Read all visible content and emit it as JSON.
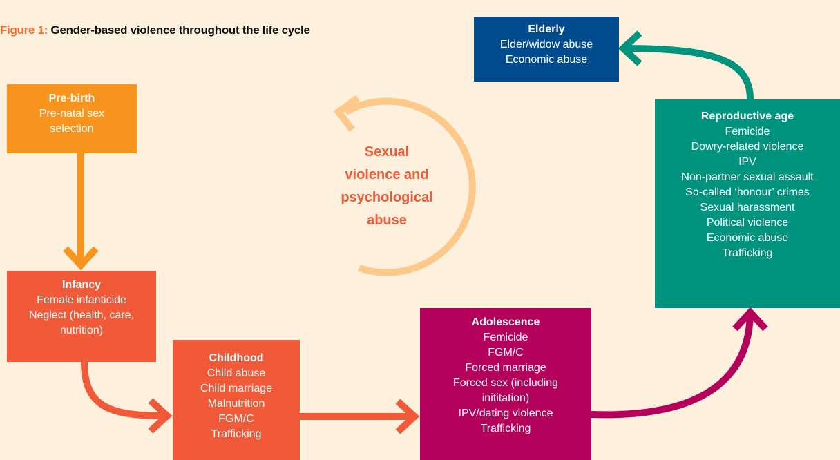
{
  "title": {
    "prefix": "Figure 1:",
    "text": "Gender-based violence throughout the life cycle"
  },
  "center_text": [
    "Sexual",
    "violence and",
    "psychological",
    "abuse"
  ],
  "nodes": [
    {
      "label": "Pre-birth",
      "items": [
        "Pre-natal sex selection"
      ]
    },
    {
      "label": "Infancy",
      "items": [
        "Female infanticide",
        "Neglect (health, care, nutrition)"
      ]
    },
    {
      "label": "Childhood",
      "items": [
        "Child abuse",
        "Child marriage",
        "Malnutrition",
        "FGM/C",
        "Trafficking"
      ]
    },
    {
      "label": "Adolescence",
      "items": [
        "Femicide",
        "FGM/C",
        "Forced marriage",
        "Forced sex (including inititation)",
        "IPV/dating violence",
        "Trafficking"
      ]
    },
    {
      "label": "Reproductive age",
      "items": [
        "Femicide",
        "Dowry-related violence",
        "IPV",
        "Non-partner sexual assault",
        "So-called ‘honour’ crimes",
        "Sexual harassment",
        "Political violence",
        "Economic abuse",
        "Trafficking"
      ]
    },
    {
      "label": "Elderly",
      "items": [
        "Elder/widow abuse",
        "Economic abuse"
      ]
    }
  ]
}
